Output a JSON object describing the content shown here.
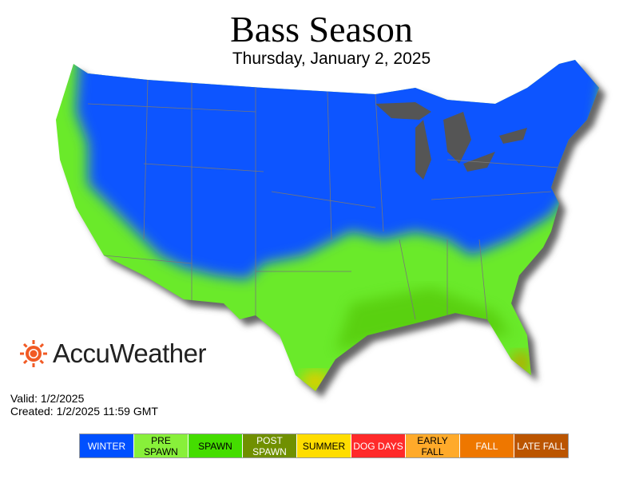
{
  "title": "Bass Season",
  "subtitle": "Thursday, January 2, 2025",
  "brand": "AccuWeather",
  "valid": "Valid: 1/2/2025",
  "created": "Created: 1/2/2025 11:59 GMT",
  "legend": [
    {
      "label": "WINTER",
      "color": "#0050ff",
      "text": "#ffffff"
    },
    {
      "label": "PRE SPAWN",
      "color": "#88f03a",
      "text": "#000000"
    },
    {
      "label": "SPAWN",
      "color": "#44dd00",
      "text": "#000000"
    },
    {
      "label": "POST SPAWN",
      "color": "#709000",
      "text": "#ffffff"
    },
    {
      "label": "SUMMER",
      "color": "#ffdd00",
      "text": "#000000"
    },
    {
      "label": "DOG DAYS",
      "color": "#ff2a2a",
      "text": "#ffffff"
    },
    {
      "label": "EARLY FALL",
      "color": "#ffaa2a",
      "text": "#000000"
    },
    {
      "label": "FALL",
      "color": "#ee7700",
      "text": "#ffffff"
    },
    {
      "label": "LATE FALL",
      "color": "#bb5500",
      "text": "#ffffff"
    }
  ]
}
